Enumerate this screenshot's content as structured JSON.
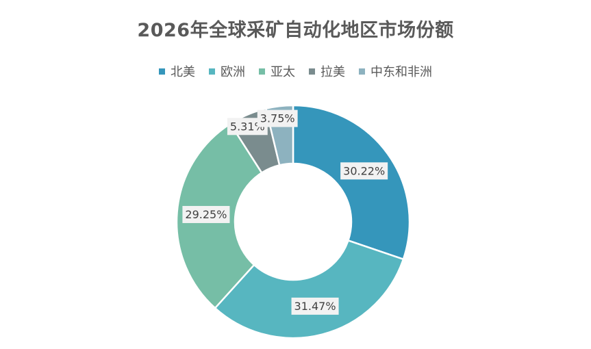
{
  "chart_data": {
    "type": "pie",
    "variant": "donut",
    "title": "2026年全球采矿自动化地区市场份额",
    "legend_position": "top",
    "categories": [
      "北美",
      "欧洲",
      "亚太",
      "拉美",
      "中东和非洲"
    ],
    "values": [
      30.22,
      31.47,
      29.25,
      5.31,
      3.75
    ],
    "labels": [
      "30.22%",
      "31.47%",
      "29.25%",
      "5.31%",
      "3.75%"
    ],
    "colors": [
      "#3596bb",
      "#57b6c0",
      "#76bea6",
      "#7a8c8e",
      "#8db2bf"
    ],
    "unit": "%"
  }
}
